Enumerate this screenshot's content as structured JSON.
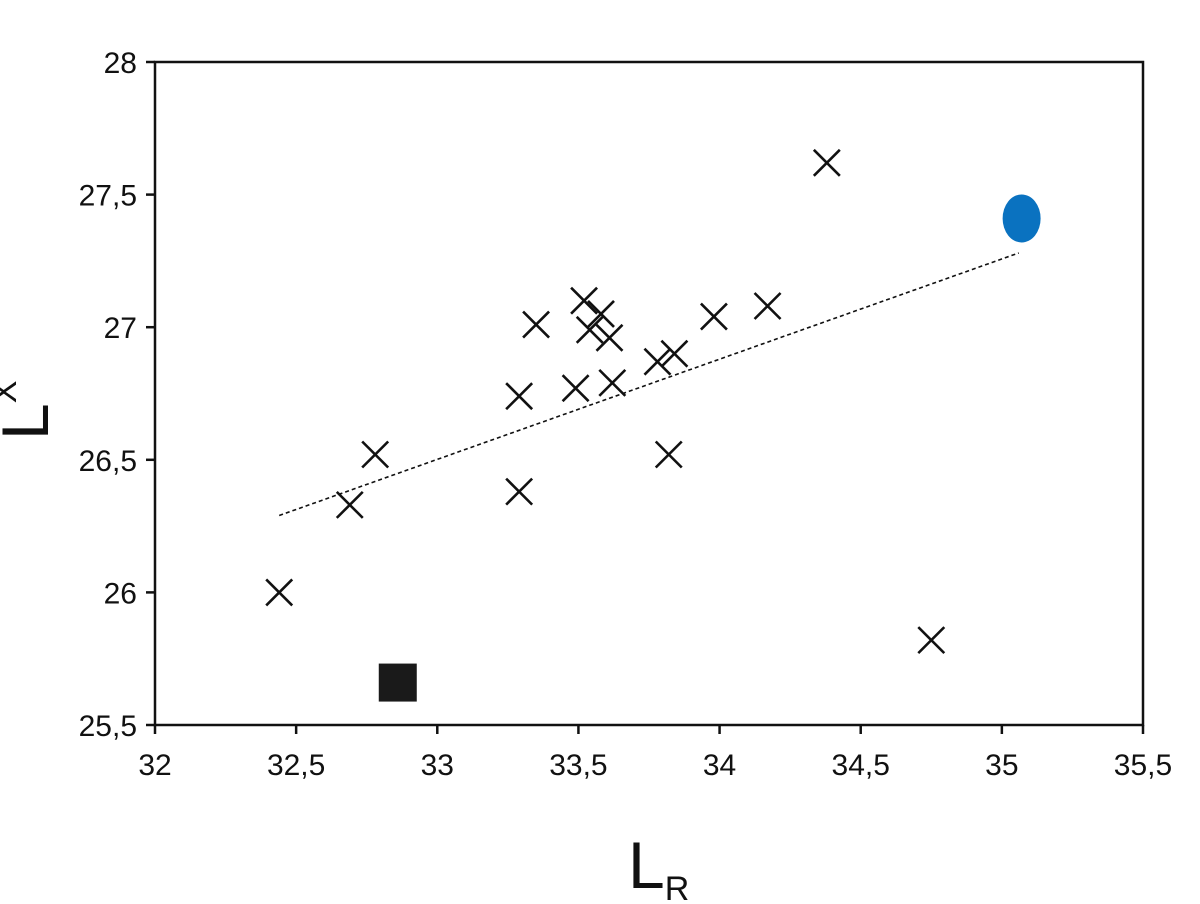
{
  "chart_data": {
    "type": "scatter",
    "title": "",
    "xlabel": "L",
    "xlabel_subscript": "R",
    "ylabel": "L",
    "ylabel_subscript": "X",
    "xlim": [
      32,
      35.5
    ],
    "ylim": [
      25.5,
      28
    ],
    "x_ticks": [
      "32",
      "32,5",
      "33",
      "33,5",
      "34",
      "34,5",
      "35",
      "35,5"
    ],
    "y_ticks": [
      "25,5",
      "26",
      "26,5",
      "27",
      "27,5",
      "28"
    ],
    "x_tick_values": [
      32,
      32.5,
      33,
      33.5,
      34,
      34.5,
      35,
      35.5
    ],
    "y_tick_values": [
      25.5,
      26,
      26.5,
      27,
      27.5,
      28
    ],
    "grid": false,
    "legend": "none",
    "series": [
      {
        "marker": "cross",
        "color": "#111111",
        "points": [
          {
            "x": 32.44,
            "y": 26.0
          },
          {
            "x": 32.69,
            "y": 26.33
          },
          {
            "x": 32.78,
            "y": 26.52
          },
          {
            "x": 33.29,
            "y": 26.38
          },
          {
            "x": 33.29,
            "y": 26.74
          },
          {
            "x": 33.35,
            "y": 27.01
          },
          {
            "x": 33.49,
            "y": 26.77
          },
          {
            "x": 33.52,
            "y": 27.1
          },
          {
            "x": 33.54,
            "y": 26.99
          },
          {
            "x": 33.58,
            "y": 27.05
          },
          {
            "x": 33.61,
            "y": 26.96
          },
          {
            "x": 33.62,
            "y": 26.79
          },
          {
            "x": 33.78,
            "y": 26.87
          },
          {
            "x": 33.82,
            "y": 26.52
          },
          {
            "x": 33.84,
            "y": 26.9
          },
          {
            "x": 33.98,
            "y": 27.04
          },
          {
            "x": 34.17,
            "y": 27.08
          },
          {
            "x": 34.38,
            "y": 27.62
          },
          {
            "x": 34.75,
            "y": 25.82
          }
        ]
      },
      {
        "marker": "square",
        "color": "#1a1a1a",
        "points": [
          {
            "x": 32.86,
            "y": 25.66
          }
        ]
      },
      {
        "marker": "ellipse",
        "color": "#0a72c0",
        "points": [
          {
            "x": 35.07,
            "y": 27.41
          }
        ]
      }
    ],
    "trendline": {
      "style": "dotted",
      "color": "#111111",
      "points": [
        {
          "x": 32.44,
          "y": 26.29
        },
        {
          "x": 35.06,
          "y": 27.28
        }
      ]
    }
  }
}
